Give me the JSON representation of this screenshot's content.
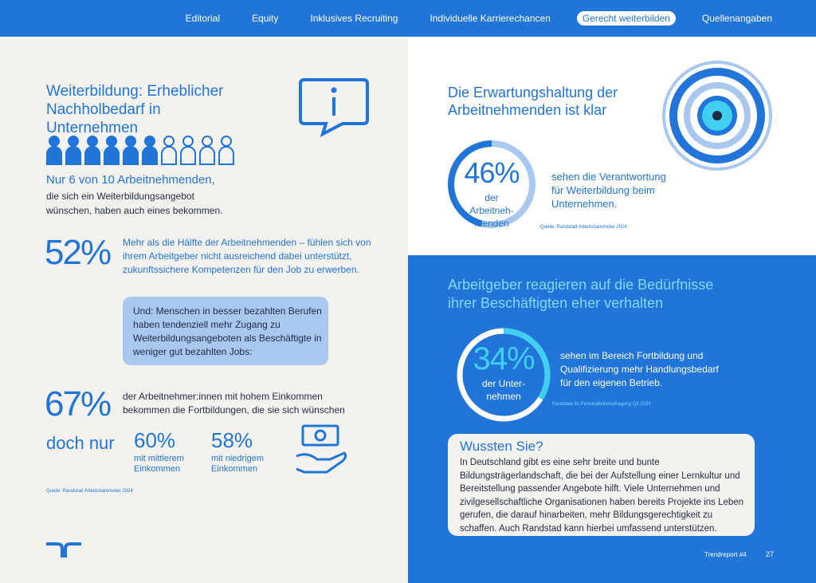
{
  "nav": {
    "items": [
      "Editorial",
      "Equity",
      "Inklusives Recruiting",
      "Individuelle Karrierechancen",
      "Gerecht weiterbilden",
      "Quellenangaben"
    ]
  },
  "left": {
    "title": "Weiterbildung: Erheblicher Nachholbedarf in Unternehmen",
    "lead": "Nur 6 von 10 Arbeitnehmenden,",
    "lead_text": "die sich ein Weiterbildungsangebot wünschen, haben auch eines bekommen.",
    "stat1": {
      "figure": "52%",
      "text": "Mehr als die Hälfte der Arbeitnehmenden – fühlen sich von ihrem Arbeitgeber nicht ausreichend dabei unterstützt, zukunftssichere Kompetenzen für den Job zu erwerben."
    },
    "callout": "Und: Menschen in besser bezahlten Berufen haben tendenziell mehr Zugang zu Weiterbildungsangeboten als Beschäftigte in weniger gut bezahlten Jobs:",
    "stat2": {
      "figure": "67%",
      "text": "der Arbeitnehmer:innen mit hohem Einkommen bekommen die Fortbildungen, die sie sich wünschen"
    },
    "contrast": "doch nur",
    "stat3": {
      "figure": "60%",
      "text": "mit mittlerem Einkommen"
    },
    "stat4": {
      "figure": "58%",
      "text": "mit niedrigem Einkommen"
    },
    "source": "Quelle: Randstad Arbeitsbarometer 2024"
  },
  "right_top": {
    "title": "Die Erwartungshaltung der Arbeitnehmenden ist klar",
    "ring": {
      "value": 46,
      "label": "46%"
    },
    "ring_caption": "der Arbeitneh-menden",
    "text": "sehen die Verantwortung für Weiterbildung beim Unternehmen.",
    "source": "Quelle: Randstad Arbeitsbarometer 2024"
  },
  "right_bottom": {
    "title": "Arbeitgeber reagieren auf die Bedürfnisse ihrer Beschäftigten eher verhalten",
    "ring": {
      "value": 34,
      "label": "34%"
    },
    "ring_caption": "der Unter-nehmen",
    "text": "sehen im Bereich Fortbildung und Qualifizierung mehr Handlungsbedarf für den eigenen Betrieb.",
    "source": "Randstad ifo Personalleiterbefragung Q3 2024",
    "box_title": "Wussten Sie?",
    "box_text": "In Deutschland gibt es eine sehr breite und bunte Bildungsträgerlandschaft, die bei der Aufstellung einer Lernkultur und Bereitstellung passender Angebote hilft. Viele Unternehmen und zivilgesellschaftliche Organisationen haben bereits Projekte ins Leben gerufen, die darauf hinarbeiten, mehr Bildungsgerechtigkeit zu schaffen. Auch Randstad kann hierbei umfassend unterstützen."
  },
  "footer": {
    "label": "Trendreport #4",
    "page": "27"
  }
}
